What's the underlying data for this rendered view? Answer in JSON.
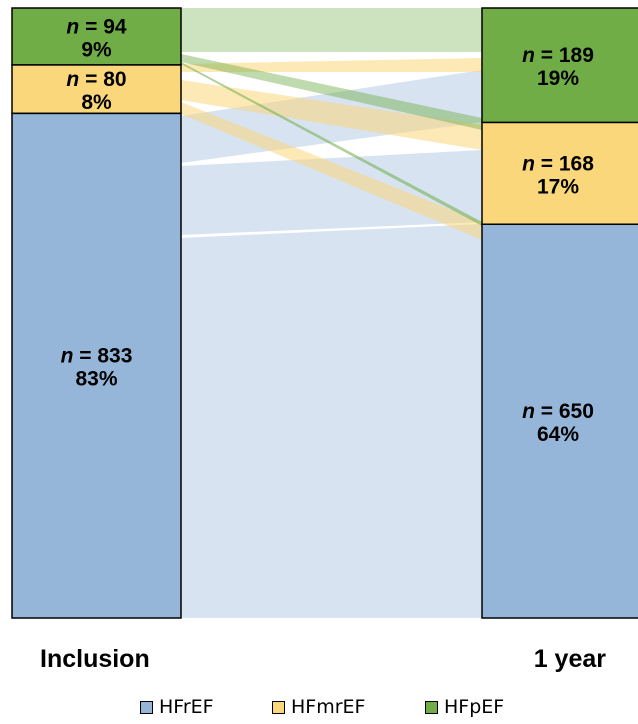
{
  "chart_data": {
    "type": "alluvial",
    "stages": [
      "Inclusion",
      "1 year"
    ],
    "categories": [
      "HFrEF",
      "HFmrEF",
      "HFpEF"
    ],
    "colors": {
      "HFrEF": "#95B6D9",
      "HFmrEF": "#F9D77A",
      "HFpEF": "#70AD47"
    },
    "stage_totals": {
      "Inclusion": [
        {
          "category": "HFpEF",
          "n": 94,
          "n_label": "= 94",
          "pct": "9%"
        },
        {
          "category": "HFmrEF",
          "n": 80,
          "n_label": "= 80",
          "pct": "8%"
        },
        {
          "category": "HFrEF",
          "n": 833,
          "n_label": "= 833",
          "pct": "83%"
        }
      ],
      "1 year": [
        {
          "category": "HFpEF",
          "n": 189,
          "n_label": "= 189",
          "pct": "19%"
        },
        {
          "category": "HFmrEF",
          "n": 168,
          "n_label": "= 168",
          "pct": "17%"
        },
        {
          "category": "HFrEF",
          "n": 650,
          "n_label": "= 650",
          "pct": "64%"
        }
      ]
    },
    "n_symbol": "n",
    "legend_position": "bottom"
  }
}
